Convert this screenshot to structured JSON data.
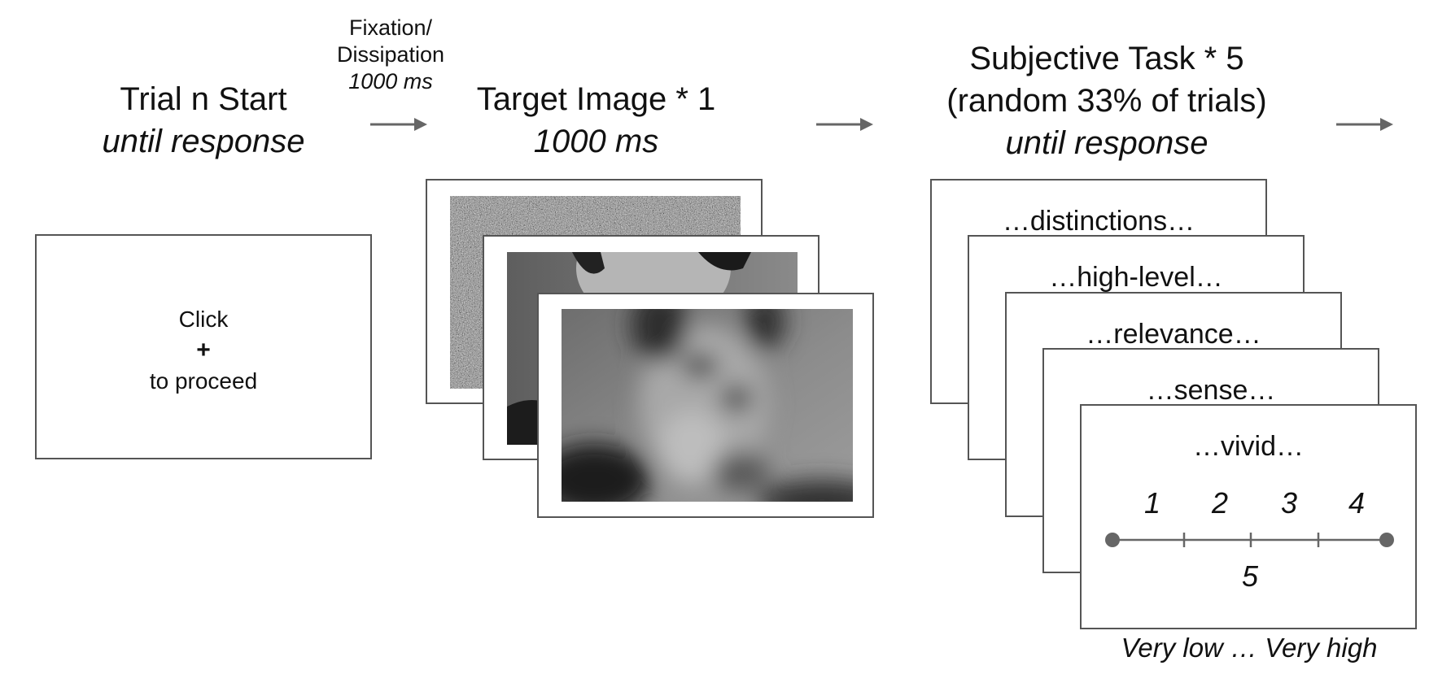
{
  "stage1": {
    "title": "Trial n Start",
    "duration": "until response"
  },
  "transition": {
    "line1": "Fixation/",
    "line2": "Dissipation",
    "duration": "1000 ms"
  },
  "stage2": {
    "title": "Target Image * 1",
    "duration": "1000 ms"
  },
  "stage3": {
    "title": "Subjective Task * 5",
    "subtitle": "(random 33% of trials)",
    "duration": "until response"
  },
  "start_card": {
    "line1": "Click",
    "plus": "+",
    "line2": "to proceed"
  },
  "task_cards": [
    "…distinctions…",
    "…high-level…",
    "…relevance…",
    "…sense…",
    "…vivid…"
  ],
  "scale": {
    "labels": [
      "1",
      "2",
      "3",
      "4"
    ],
    "bottom_label": "5",
    "anchor_text": "Very low … Very high"
  },
  "colors": {
    "arrow": "#666666",
    "border": "#555555",
    "dot": "#666666"
  }
}
